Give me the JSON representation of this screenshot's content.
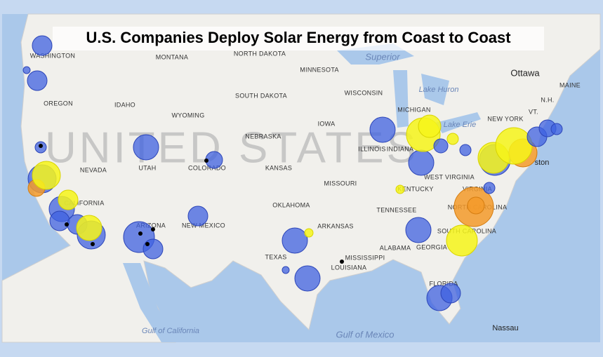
{
  "title": "U.S. Companies Deploy Solar Energy from Coast to Coast",
  "watermark": "UNITED STATES",
  "labels": [
    "WASHINGTON",
    "MONTANA",
    "NORTH DAKOTA",
    "MINNESOTA",
    "OREGON",
    "IDAHO",
    "SOUTH DAKOTA",
    "WISCONSIN",
    "MICHIGAN",
    "WYOMING",
    "IOWA",
    "NEBRASKA",
    "NEVADA",
    "UTAH",
    "COLORADO",
    "KANSAS",
    "ILLINOIS",
    "INDIANA",
    "MISSOURI",
    "KENTUCKY",
    "WEST VIRGINIA",
    "VIRGINIA",
    "NEW YORK",
    "VT.",
    "N.H.",
    "MAINE",
    "OKLAHOMA",
    "TENNESSEE",
    "ARKANSAS",
    "NEW MEXICO",
    "ARIZONA",
    "CALIFORNIA",
    "TEXAS",
    "MISSISSIPPI",
    "ALABAMA",
    "GEORGIA",
    "SOUTH CAROLINA",
    "NORTH CAROLINA",
    "LOUISIANA",
    "FLORIDA"
  ],
  "water": [
    "Superior",
    "Lake Huron",
    "Lake Erie",
    "Gulf of Mexico",
    "Gulf of California"
  ],
  "cities": [
    "Ottawa",
    "Nassau",
    "ston"
  ]
}
